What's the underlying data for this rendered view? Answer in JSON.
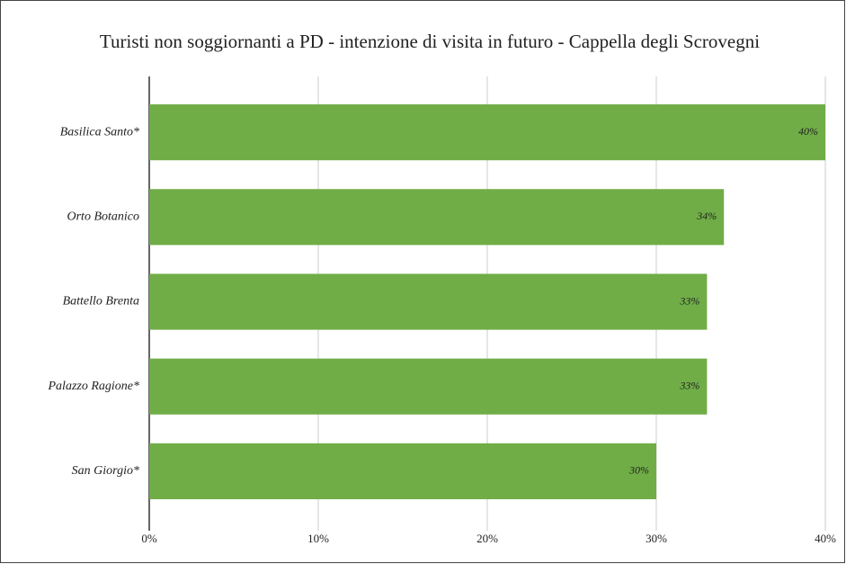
{
  "chart_data": {
    "type": "bar",
    "orientation": "horizontal",
    "title": "Turisti non soggiornanti a PD - intenzione di visita in futuro - Cappella degli Scrovegni",
    "categories": [
      "Basilica Santo*",
      "Orto Botanico",
      "Battello Brenta",
      "Palazzo Ragione*",
      "San Giorgio*"
    ],
    "values": [
      40,
      34,
      33,
      33,
      30
    ],
    "value_labels": [
      "40%",
      "34%",
      "33%",
      "33%",
      "30%"
    ],
    "color": "#70ad47",
    "xlim": [
      0,
      40
    ],
    "xticks": [
      {
        "value": 0,
        "label": "0%"
      },
      {
        "value": 10,
        "label": "10%"
      },
      {
        "value": 20,
        "label": "20%"
      },
      {
        "value": 30,
        "label": "30%"
      },
      {
        "value": 40,
        "label": "40%"
      }
    ],
    "grid": true
  }
}
